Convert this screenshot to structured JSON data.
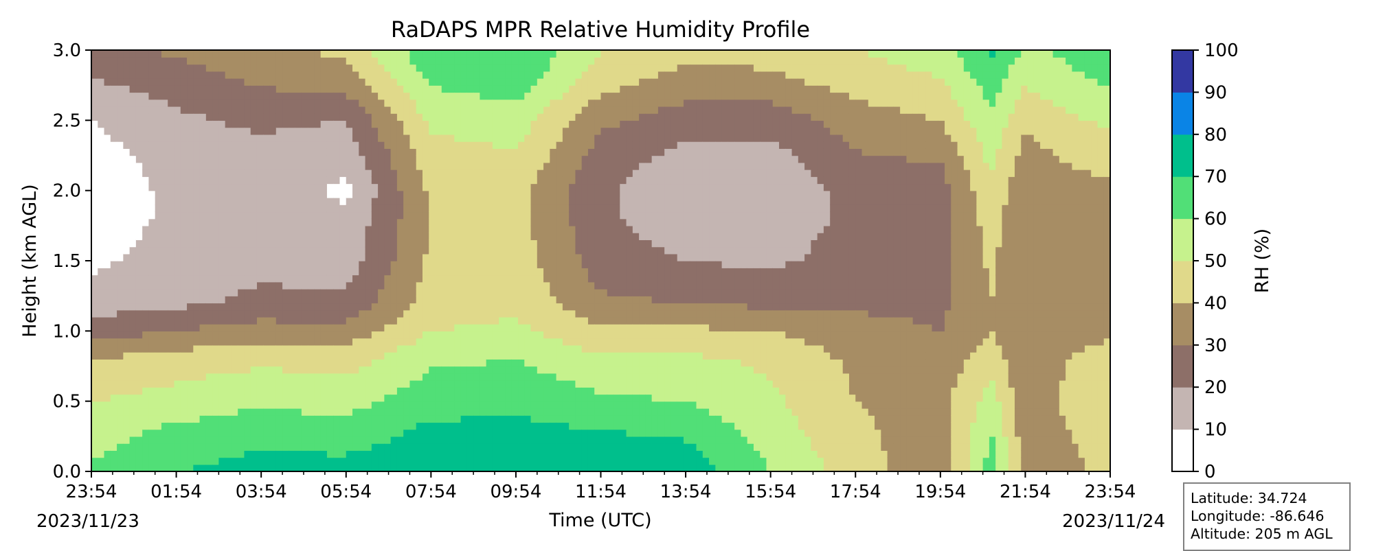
{
  "chart_data": {
    "type": "heatmap",
    "title": "RaDAPS MPR Relative Humidity Profile",
    "xlabel": "Time (UTC)",
    "ylabel": "Height (km AGL)",
    "x_ticks": [
      "23:54",
      "01:54",
      "03:54",
      "05:54",
      "07:54",
      "09:54",
      "11:54",
      "13:54",
      "15:54",
      "17:54",
      "19:54",
      "21:54",
      "23:54"
    ],
    "x_start_date": "2023/11/23",
    "x_end_date": "2023/11/24",
    "ylim": [
      0.0,
      3.0
    ],
    "y_ticks": [
      "0.0",
      "0.5",
      "1.0",
      "1.5",
      "2.0",
      "2.5",
      "3.0"
    ],
    "colorbar": {
      "label": "RH (%)",
      "ticks": [
        "0",
        "10",
        "20",
        "30",
        "40",
        "50",
        "60",
        "70",
        "80",
        "90",
        "100"
      ],
      "levels": [
        0,
        10,
        20,
        30,
        40,
        50,
        60,
        70,
        80,
        90,
        100
      ],
      "colors": [
        "#ffffff",
        "#c4b5b2",
        "#8d6f68",
        "#a78d64",
        "#e0d98a",
        "#c6f28d",
        "#51df77",
        "#00bf8c",
        "#0a84e6",
        "#3338a2"
      ]
    },
    "rh_profiles": {
      "heights_km": [
        0.0,
        0.3,
        0.5,
        0.8,
        1.0,
        1.2,
        1.5,
        1.8,
        2.0,
        2.2,
        2.5,
        2.8,
        3.0
      ],
      "hours_from_start": [
        0,
        2,
        4,
        6,
        8,
        10,
        12,
        14,
        16,
        18,
        20,
        21.2,
        22,
        23,
        24
      ],
      "values": [
        [
          62,
          55,
          50,
          40,
          25,
          15,
          8,
          5,
          5,
          5,
          10,
          20,
          25
        ],
        [
          70,
          62,
          54,
          45,
          30,
          18,
          14,
          12,
          12,
          14,
          18,
          25,
          32
        ],
        [
          74,
          66,
          58,
          48,
          35,
          22,
          18,
          15,
          15,
          16,
          22,
          32,
          38
        ],
        [
          74,
          64,
          56,
          46,
          34,
          22,
          15,
          12,
          8,
          12,
          20,
          36,
          42
        ],
        [
          78,
          72,
          66,
          58,
          50,
          45,
          42,
          40,
          42,
          45,
          52,
          62,
          68
        ],
        [
          78,
          72,
          68,
          60,
          52,
          48,
          45,
          44,
          44,
          48,
          55,
          66,
          70
        ],
        [
          78,
          70,
          62,
          52,
          42,
          32,
          25,
          22,
          22,
          25,
          32,
          45,
          50
        ],
        [
          76,
          68,
          60,
          52,
          42,
          30,
          20,
          14,
          12,
          15,
          25,
          36,
          44
        ],
        [
          60,
          55,
          52,
          48,
          40,
          28,
          18,
          15,
          12,
          15,
          24,
          38,
          44
        ],
        [
          45,
          42,
          40,
          38,
          34,
          28,
          24,
          22,
          24,
          28,
          35,
          45,
          50
        ],
        [
          32,
          34,
          36,
          34,
          30,
          28,
          26,
          25,
          26,
          30,
          40,
          50,
          55
        ],
        [
          65,
          60,
          55,
          45,
          40,
          40,
          42,
          45,
          48,
          52,
          58,
          65,
          72
        ],
        [
          35,
          34,
          33,
          32,
          32,
          30,
          30,
          30,
          32,
          35,
          42,
          52,
          58
        ],
        [
          38,
          40,
          42,
          40,
          36,
          34,
          33,
          34,
          35,
          40,
          48,
          58,
          62
        ],
        [
          42,
          45,
          48,
          44,
          38,
          35,
          34,
          35,
          38,
          44,
          52,
          62,
          66
        ]
      ]
    }
  },
  "station_info": {
    "latitude": "Latitude: 34.724",
    "longitude": "Longitude: -86.646",
    "altitude": "Altitude: 205 m AGL"
  }
}
